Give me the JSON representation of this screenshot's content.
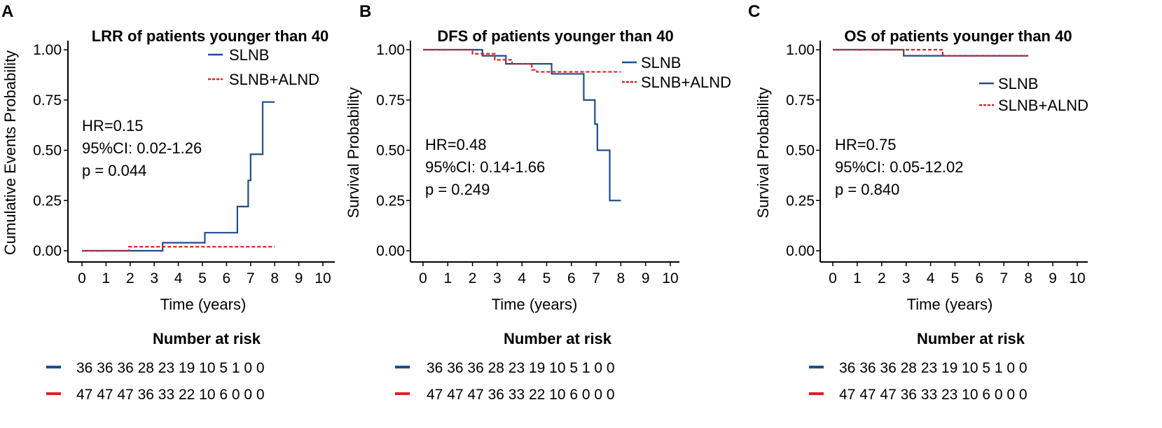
{
  "chart_data": [
    {
      "panel": "A",
      "type": "line",
      "title": "LRR of patients younger than 40",
      "xlabel": "Time (years)",
      "ylabel": "Cumulative Events Probability",
      "xlim": [
        0,
        10
      ],
      "ylim": [
        0,
        1
      ],
      "xticks": [
        "0",
        "1",
        "2",
        "3",
        "4",
        "5",
        "6",
        "7",
        "8",
        "9",
        "10"
      ],
      "yticks": [
        "0.00",
        "0.25",
        "0.50",
        "0.75",
        "1.00"
      ],
      "legend": {
        "position": "top-right",
        "entries": [
          "SLNB",
          "SLNB+ALND"
        ]
      },
      "annotations": [
        "HR=0.15",
        "95%CI: 0.02-1.26",
        "p = 0.044"
      ],
      "series": [
        {
          "name": "SLNB",
          "color": "#1f4e8c",
          "style": "solid",
          "x": [
            0,
            3.35,
            5.1,
            6.45,
            6.9,
            7.0,
            7.5,
            8.0
          ],
          "y": [
            0,
            0.04,
            0.09,
            0.22,
            0.35,
            0.48,
            0.74,
            0.74
          ]
        },
        {
          "name": "SLNB+ALND",
          "color": "#e01f26",
          "style": "dashed",
          "x": [
            0,
            1.95,
            8.0
          ],
          "y": [
            0,
            0.02,
            0.02
          ]
        }
      ],
      "risk_table": {
        "title": "Number at risk",
        "rows": [
          {
            "color": "#1f4e8c",
            "text": "36 36 36 28 23 19 10 5 1 0 0"
          },
          {
            "color": "#e01f26",
            "text": "47 47 47 36 33 22 10 6 0 0 0"
          }
        ]
      }
    },
    {
      "panel": "B",
      "type": "line",
      "title": "DFS of patients younger than 40",
      "xlabel": "Time (years)",
      "ylabel": "Survival Probability",
      "xlim": [
        0,
        10
      ],
      "ylim": [
        0,
        1
      ],
      "xticks": [
        "0",
        "1",
        "2",
        "3",
        "4",
        "5",
        "6",
        "7",
        "8",
        "9",
        "10"
      ],
      "yticks": [
        "0.00",
        "0.25",
        "0.50",
        "0.75",
        "1.00"
      ],
      "legend": {
        "position": "top-right",
        "entries": [
          "SLNB",
          "SLNB+ALND"
        ]
      },
      "annotations": [
        "HR=0.48",
        "95%CI: 0.14-1.66",
        "p = 0.249"
      ],
      "series": [
        {
          "name": "SLNB",
          "color": "#1f4e8c",
          "style": "solid",
          "x": [
            0,
            2.4,
            3.35,
            5.2,
            6.5,
            6.95,
            7.05,
            7.55,
            8.0
          ],
          "y": [
            1.0,
            0.97,
            0.93,
            0.88,
            0.75,
            0.63,
            0.5,
            0.25,
            0.25
          ]
        },
        {
          "name": "SLNB+ALND",
          "color": "#e01f26",
          "style": "dashed",
          "x": [
            0,
            2.0,
            2.9,
            3.6,
            4.4,
            4.6,
            8.0
          ],
          "y": [
            1.0,
            0.98,
            0.95,
            0.93,
            0.9,
            0.89,
            0.89
          ]
        }
      ],
      "risk_table": {
        "title": "Number at risk",
        "rows": [
          {
            "color": "#1f4e8c",
            "text": "36 36 36 28 23 19 10 5 1 0 0"
          },
          {
            "color": "#e01f26",
            "text": "47 47 47 36 33 22 10 6 0 0 0"
          }
        ]
      }
    },
    {
      "panel": "C",
      "type": "line",
      "title": "OS of patients younger than 40",
      "xlabel": "Time (years)",
      "ylabel": "Survival Probability",
      "xlim": [
        0,
        10
      ],
      "ylim": [
        0,
        1
      ],
      "xticks": [
        "0",
        "1",
        "2",
        "3",
        "4",
        "5",
        "6",
        "7",
        "8",
        "9",
        "10"
      ],
      "yticks": [
        "0.00",
        "0.25",
        "0.50",
        "0.75",
        "1.00"
      ],
      "legend": {
        "position": "right",
        "entries": [
          "SLNB",
          "SLNB+ALND"
        ]
      },
      "annotations": [
        "HR=0.75",
        "95%CI: 0.05-12.02",
        "p = 0.840"
      ],
      "series": [
        {
          "name": "SLNB",
          "color": "#1f4e8c",
          "style": "solid",
          "x": [
            0,
            2.9,
            8.0
          ],
          "y": [
            1.0,
            0.97,
            0.97
          ]
        },
        {
          "name": "SLNB+ALND",
          "color": "#e01f26",
          "style": "dashed",
          "x": [
            0,
            4.5,
            8.0
          ],
          "y": [
            1.0,
            0.97,
            0.97
          ]
        }
      ],
      "risk_table": {
        "title": "Number at risk",
        "rows": [
          {
            "color": "#1f4e8c",
            "text": "36 36 36 28 23 19 10 5 1 0 0"
          },
          {
            "color": "#e01f26",
            "text": "47 47 47 36 33 23 10 6 0 0 0"
          }
        ]
      }
    }
  ]
}
